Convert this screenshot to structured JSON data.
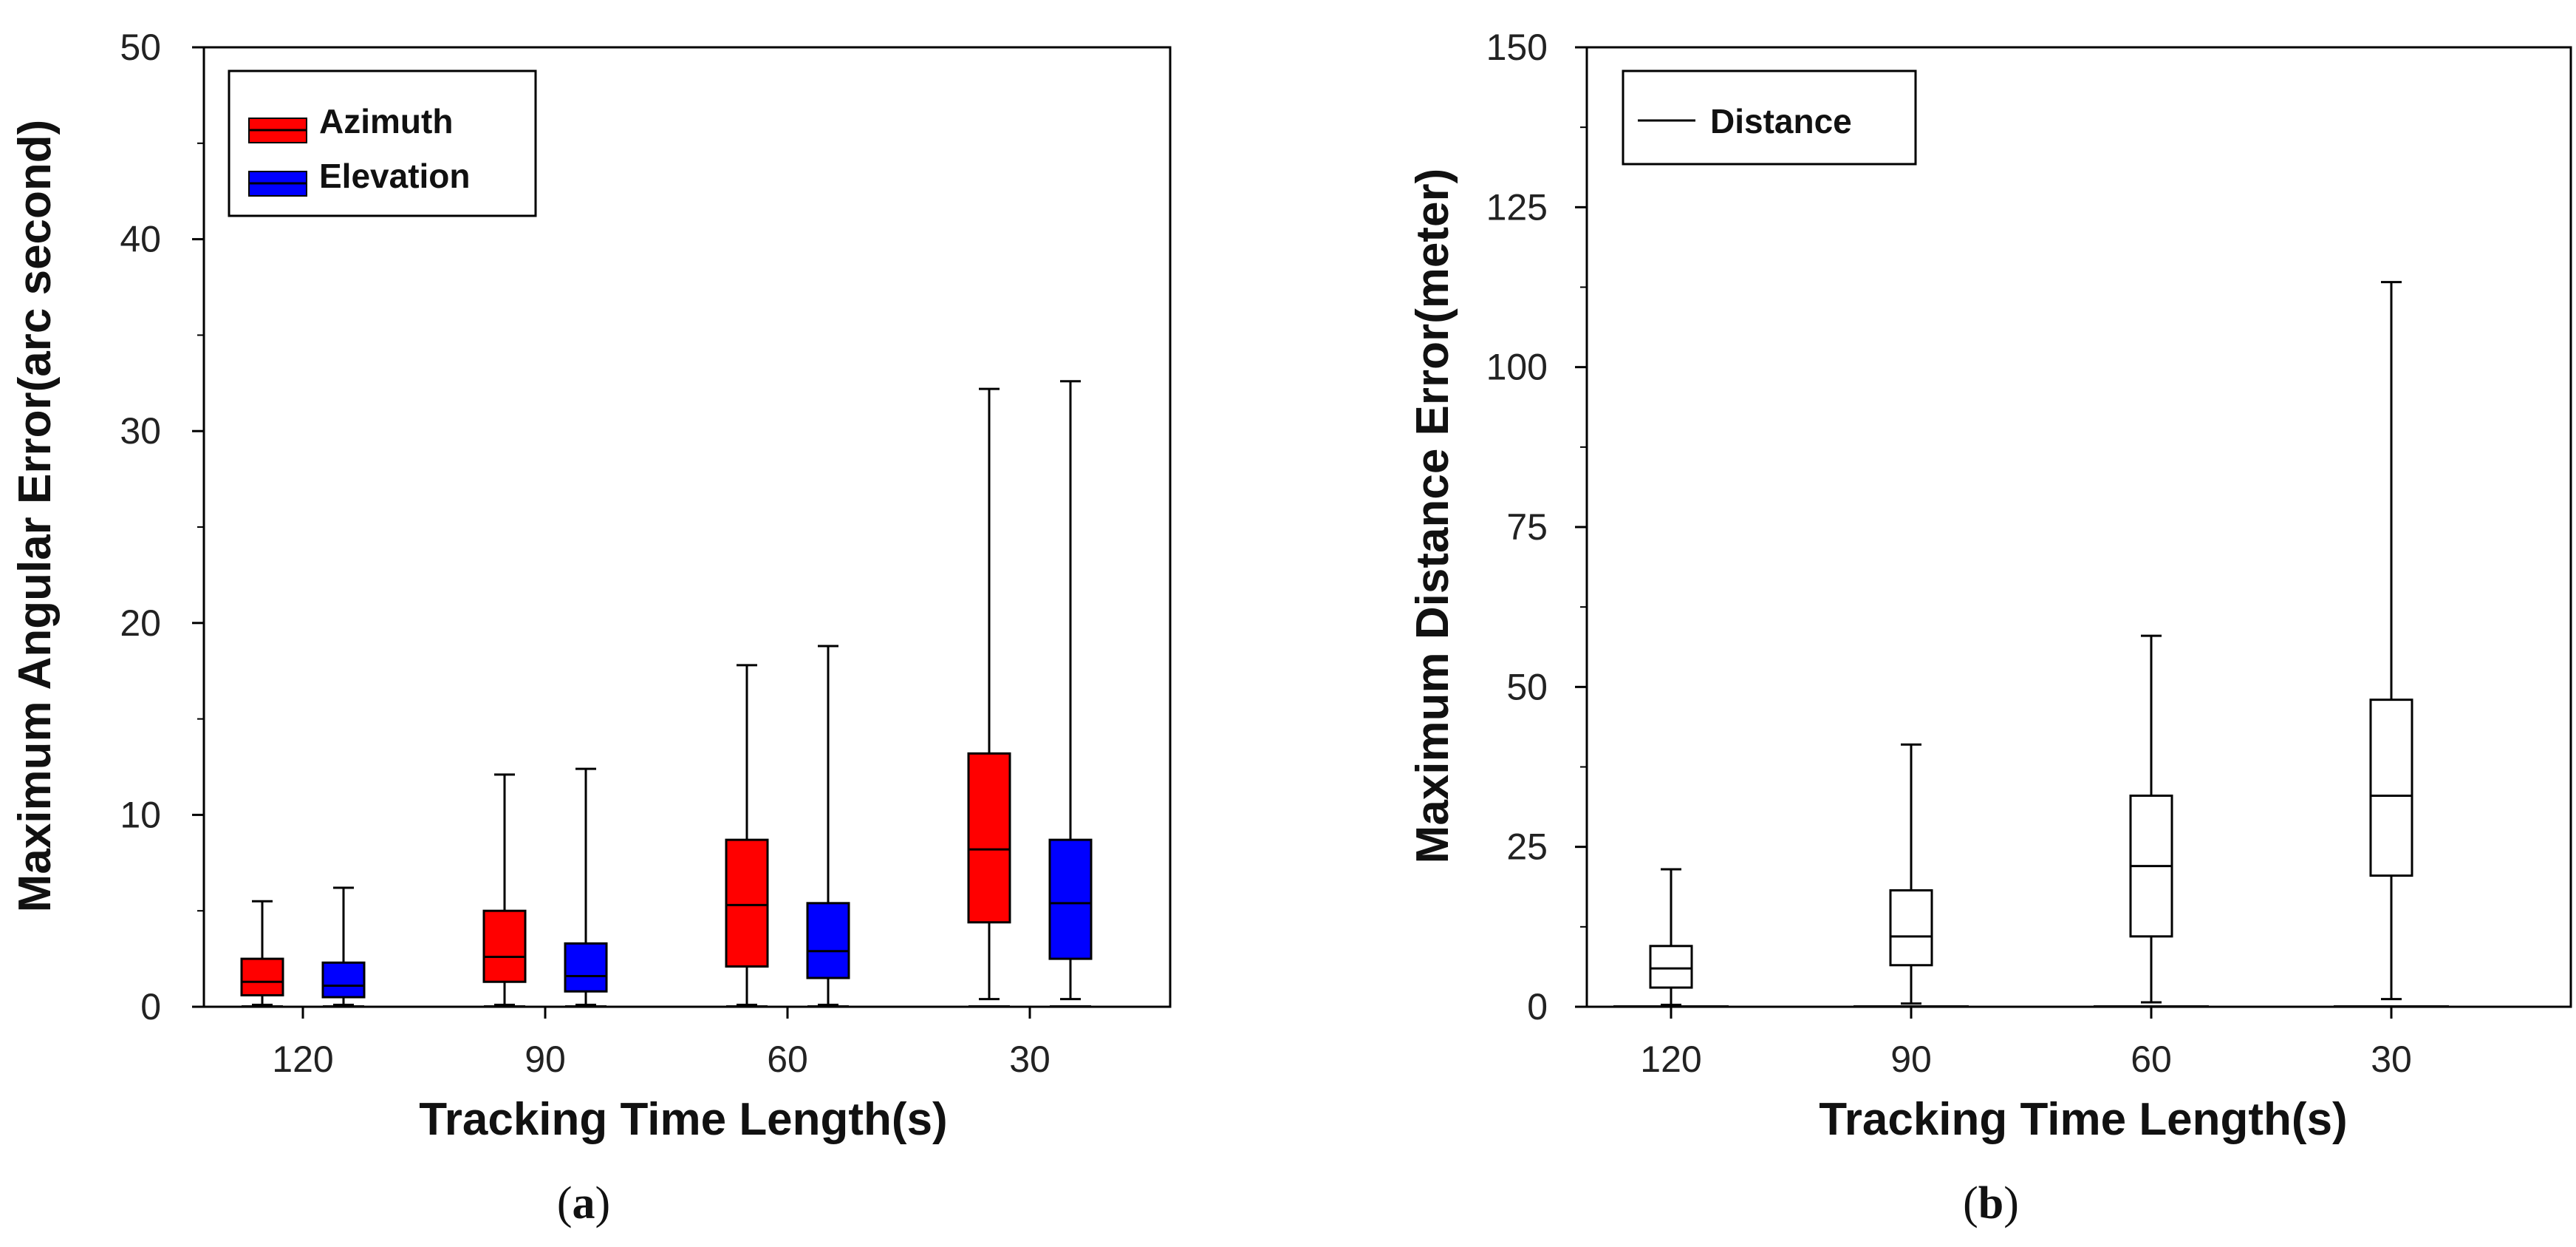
{
  "chart_data": [
    {
      "type": "box",
      "panel": "a",
      "xlabel": "Tracking Time Length(s)",
      "ylabel": "Maximum Angular Error(arc second)",
      "ylim": [
        0,
        50
      ],
      "yticks": [
        "0",
        "10",
        "20",
        "30",
        "40",
        "50"
      ],
      "categories": [
        "120",
        "90",
        "60",
        "30"
      ],
      "legend": {
        "position": "top-left"
      },
      "series": [
        {
          "name": "Azimuth",
          "color": "#ff0000",
          "boxes": [
            {
              "min": 0.1,
              "q1": 0.6,
              "median": 1.3,
              "q3": 2.5,
              "max": 5.5
            },
            {
              "min": 0.1,
              "q1": 1.3,
              "median": 2.6,
              "q3": 5.0,
              "max": 12.1
            },
            {
              "min": 0.1,
              "q1": 2.1,
              "median": 5.3,
              "q3": 8.7,
              "max": 17.8
            },
            {
              "min": 0.4,
              "q1": 4.4,
              "median": 8.2,
              "q3": 13.2,
              "max": 32.2
            }
          ]
        },
        {
          "name": "Elevation",
          "color": "#0000ff",
          "boxes": [
            {
              "min": 0.1,
              "q1": 0.5,
              "median": 1.1,
              "q3": 2.3,
              "max": 6.2
            },
            {
              "min": 0.1,
              "q1": 0.8,
              "median": 1.6,
              "q3": 3.3,
              "max": 12.4
            },
            {
              "min": 0.1,
              "q1": 1.5,
              "median": 2.9,
              "q3": 5.4,
              "max": 18.8
            },
            {
              "min": 0.4,
              "q1": 2.5,
              "median": 5.4,
              "q3": 8.7,
              "max": 32.6
            }
          ]
        }
      ]
    },
    {
      "type": "box",
      "panel": "b",
      "xlabel": "Tracking Time Length(s)",
      "ylabel": "Maximum Distance Error(meter)",
      "ylim": [
        0,
        150
      ],
      "yticks": [
        "0",
        "25",
        "50",
        "75",
        "100",
        "125",
        "150"
      ],
      "categories": [
        "120",
        "90",
        "60",
        "30"
      ],
      "legend": {
        "position": "top-left"
      },
      "series": [
        {
          "name": "Distance",
          "color": "#ffffff",
          "boxes": [
            {
              "min": 0.3,
              "q1": 3.0,
              "median": 6.0,
              "q3": 9.5,
              "max": 21.5
            },
            {
              "min": 0.5,
              "q1": 6.5,
              "median": 11.0,
              "q3": 18.2,
              "max": 41.0
            },
            {
              "min": 0.7,
              "q1": 11.0,
              "median": 22.0,
              "q3": 33.0,
              "max": 58.0
            },
            {
              "min": 1.2,
              "q1": 20.5,
              "median": 33.0,
              "q3": 48.0,
              "max": 113.3
            }
          ]
        }
      ]
    }
  ],
  "panel_labels": {
    "a": {
      "open": "(",
      "letter": "a",
      "close": ")"
    },
    "b": {
      "open": "(",
      "letter": "b",
      "close": ")"
    }
  }
}
